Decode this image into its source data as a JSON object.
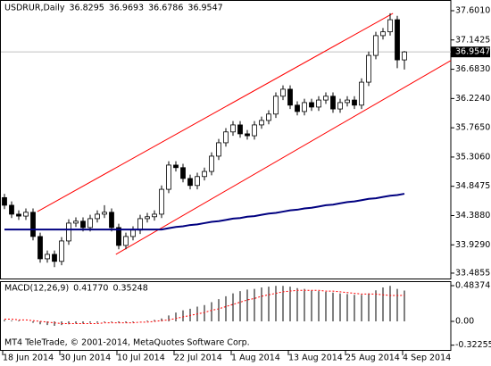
{
  "chart_data": [
    {
      "type": "candlestick",
      "title": "USDRUR,Daily",
      "categories": [
        "18 Jun 2014",
        null,
        null,
        null,
        null,
        null,
        null,
        null,
        "30 Jun 2014",
        null,
        null,
        null,
        null,
        null,
        null,
        null,
        "10 Jul 2014",
        null,
        null,
        null,
        null,
        null,
        null,
        null,
        "22 Jul 2014",
        null,
        null,
        null,
        null,
        null,
        null,
        null,
        "1 Aug 2014",
        null,
        null,
        null,
        null,
        null,
        null,
        null,
        "13 Aug 2014",
        null,
        null,
        null,
        null,
        null,
        null,
        null,
        "25 Aug 2014",
        null,
        null,
        null,
        null,
        null,
        null,
        null,
        "4 Sep 2014"
      ],
      "open": [
        34.67,
        34.55,
        34.41,
        34.38,
        34.44,
        34.06,
        33.71,
        33.78,
        33.67,
        33.99,
        34.27,
        34.3,
        34.2,
        34.34,
        34.41,
        34.44,
        34.2,
        33.92,
        34.06,
        34.16,
        34.34,
        34.37,
        34.41,
        34.8,
        35.18,
        35.14,
        34.97,
        34.86,
        35.0,
        35.08,
        35.32,
        35.53,
        35.7,
        35.81,
        35.67,
        35.64,
        35.81,
        35.88,
        35.98,
        36.26,
        36.37,
        36.12,
        36.02,
        36.16,
        36.09,
        36.2,
        36.26,
        36.06,
        36.16,
        36.2,
        36.12,
        36.48,
        36.9,
        37.21,
        37.27,
        37.46,
        36.8295
      ],
      "high": [
        34.73,
        34.61,
        34.47,
        34.5,
        34.5,
        34.12,
        33.84,
        33.84,
        34.05,
        34.33,
        34.36,
        34.36,
        34.4,
        34.47,
        34.55,
        34.5,
        34.26,
        34.12,
        34.22,
        34.4,
        34.43,
        34.47,
        34.86,
        35.24,
        35.24,
        35.2,
        35.03,
        35.06,
        35.14,
        35.38,
        35.59,
        35.76,
        35.87,
        35.87,
        35.73,
        35.87,
        35.94,
        36.04,
        36.32,
        36.43,
        36.43,
        36.18,
        36.22,
        36.22,
        36.26,
        36.32,
        36.32,
        36.22,
        36.26,
        36.26,
        36.54,
        36.96,
        37.27,
        37.33,
        37.56,
        37.52,
        36.9693
      ],
      "low": [
        34.49,
        34.35,
        34.32,
        34.32,
        34.0,
        33.65,
        33.65,
        33.58,
        33.61,
        33.93,
        34.21,
        34.14,
        34.14,
        34.28,
        34.35,
        34.14,
        33.86,
        33.86,
        34.0,
        34.1,
        34.28,
        34.31,
        34.35,
        34.74,
        35.08,
        34.91,
        34.8,
        34.8,
        34.94,
        35.02,
        35.26,
        35.47,
        35.64,
        35.61,
        35.58,
        35.58,
        35.75,
        35.82,
        35.92,
        36.2,
        36.06,
        35.96,
        35.96,
        36.03,
        36.03,
        36.14,
        36.0,
        36.0,
        36.1,
        36.06,
        36.06,
        36.42,
        36.84,
        37.15,
        37.21,
        36.7,
        36.6786
      ],
      "close": [
        34.55,
        34.41,
        34.38,
        34.44,
        34.06,
        33.71,
        33.78,
        33.67,
        33.99,
        34.27,
        34.3,
        34.2,
        34.34,
        34.41,
        34.44,
        34.2,
        33.92,
        34.06,
        34.16,
        34.34,
        34.37,
        34.41,
        34.8,
        35.18,
        35.14,
        34.97,
        34.86,
        35.0,
        35.08,
        35.32,
        35.53,
        35.7,
        35.81,
        35.67,
        35.64,
        35.81,
        35.88,
        35.98,
        36.26,
        36.37,
        36.12,
        36.02,
        36.16,
        36.09,
        36.2,
        36.26,
        36.06,
        36.16,
        36.2,
        36.12,
        36.48,
        36.9,
        37.21,
        37.27,
        37.46,
        36.83,
        36.9547
      ],
      "bull_color": "#ffffff",
      "bear_color": "#000000",
      "ma": {
        "color": "#000080",
        "values": [
          34.17,
          34.17,
          34.17,
          34.17,
          34.17,
          34.17,
          34.17,
          34.17,
          34.17,
          34.17,
          34.17,
          34.17,
          34.17,
          34.17,
          34.17,
          34.17,
          34.17,
          34.17,
          34.17,
          34.17,
          34.17,
          34.17,
          34.17,
          34.19,
          34.21,
          34.22,
          34.24,
          34.25,
          34.27,
          34.29,
          34.3,
          34.32,
          34.34,
          34.35,
          34.37,
          34.38,
          34.4,
          34.42,
          34.43,
          34.45,
          34.47,
          34.48,
          34.5,
          34.51,
          34.53,
          34.55,
          34.56,
          34.58,
          34.6,
          34.61,
          34.63,
          34.65,
          34.66,
          34.68,
          34.7,
          34.71,
          34.73
        ]
      },
      "trendline_color": "#ff0000",
      "trendlines": [
        {
          "x": [
            4.6,
            54.4
          ],
          "y": [
            34.45,
            37.56
          ]
        },
        {
          "x": [
            15.6,
            62.5
          ],
          "y": [
            33.78,
            36.82
          ]
        }
      ],
      "ylim": [
        33.401,
        37.741
      ],
      "yticks": [
        {
          "value": 37.601,
          "label": "37.6010"
        },
        37.1425,
        {
          "value": 36.683,
          "label": "36.6830"
        },
        {
          "value": 36.224,
          "label": "36.2240"
        },
        {
          "value": 35.765,
          "label": "35.7650"
        },
        {
          "value": 35.306,
          "label": "35.3060"
        },
        34.8475,
        {
          "value": 34.388,
          "label": "34.3880"
        },
        {
          "value": 33.929,
          "label": "33.9290"
        },
        33.4855
      ]
    },
    {
      "type": "macd",
      "title": "MACD(12,26,9)",
      "readout": [
        {
          "value": 0.4177,
          "label": "0.41770"
        },
        0.35248
      ],
      "histogram": [
        0.02,
        0.01,
        0.01,
        0.0,
        -0.02,
        -0.04,
        -0.05,
        -0.06,
        -0.05,
        -0.04,
        -0.03,
        -0.03,
        -0.02,
        -0.02,
        -0.01,
        -0.01,
        -0.02,
        -0.02,
        -0.01,
        0.0,
        0.01,
        0.02,
        0.04,
        0.08,
        0.12,
        0.15,
        0.17,
        0.2,
        0.22,
        0.26,
        0.3,
        0.34,
        0.38,
        0.41,
        0.43,
        0.44,
        0.46,
        0.47,
        0.48,
        0.48,
        0.47,
        0.45,
        0.44,
        0.42,
        0.41,
        0.4,
        0.39,
        0.38,
        0.37,
        0.36,
        0.36,
        0.38,
        0.42,
        0.46,
        0.48,
        0.44,
        0.4177
      ],
      "histogram_color": "#000000",
      "signal": [
        0.03,
        0.03,
        0.02,
        0.02,
        0.01,
        0.0,
        -0.01,
        -0.02,
        -0.03,
        -0.03,
        -0.03,
        -0.03,
        -0.03,
        -0.03,
        -0.02,
        -0.02,
        -0.02,
        -0.02,
        -0.02,
        -0.01,
        -0.01,
        0.0,
        0.01,
        0.02,
        0.04,
        0.06,
        0.08,
        0.1,
        0.12,
        0.15,
        0.17,
        0.2,
        0.23,
        0.26,
        0.29,
        0.31,
        0.34,
        0.36,
        0.38,
        0.4,
        0.41,
        0.42,
        0.42,
        0.42,
        0.42,
        0.41,
        0.41,
        0.4,
        0.39,
        0.38,
        0.37,
        0.37,
        0.37,
        0.36,
        0.35,
        0.35,
        0.35248
      ],
      "signal_color": "#ff0000",
      "ylim": [
        -0.387,
        0.532
      ],
      "yticks": [
        0.48374,
        {
          "value": 0,
          "label": "0.00"
        },
        -0.32255
      ],
      "footer": "MT4 TeleTrade, © 2001-2014, MetaQuotes Software Corp."
    }
  ]
}
